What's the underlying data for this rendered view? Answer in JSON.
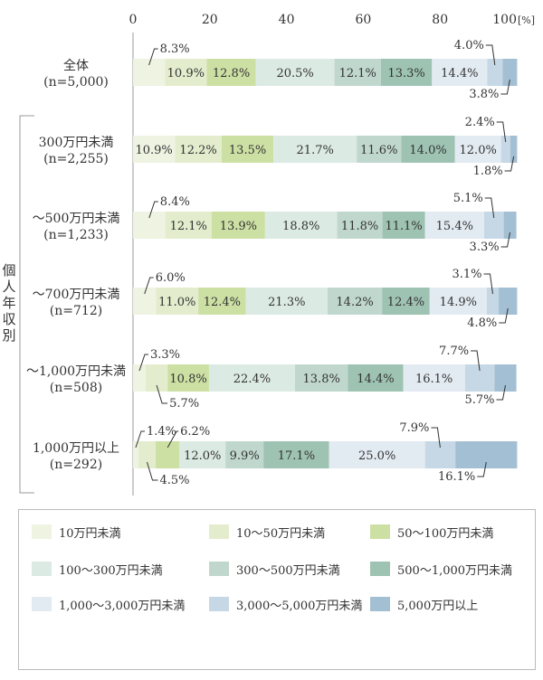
{
  "chart_data": {
    "type": "bar",
    "orientation": "horizontal",
    "stacked": true,
    "x_ticks": [
      "0",
      "20",
      "40",
      "60",
      "80",
      "100"
    ],
    "x_unit": "[%]",
    "xlim": [
      0,
      100
    ],
    "group_label": "個人年収別",
    "categories": [
      {
        "name": "全体",
        "n": "(n=5,000)"
      },
      {
        "name": "300万円未満",
        "n": "(n=2,255)"
      },
      {
        "name": "～500万円未満",
        "n": "(n=1,233)"
      },
      {
        "name": "～700万円未満",
        "n": "(n=712)"
      },
      {
        "name": "～1,000万円未満",
        "n": "(n=508)"
      },
      {
        "name": "1,000万円以上",
        "n": "(n=292)"
      }
    ],
    "series": [
      {
        "name": "10万円未満",
        "color": "#eef3e2",
        "values": [
          8.3,
          10.9,
          8.4,
          6.0,
          3.3,
          1.4
        ],
        "labels": [
          "8.3%",
          "10.9%",
          "8.4%",
          "6.0%",
          "3.3%",
          "1.4%"
        ]
      },
      {
        "name": "10～50万円未満",
        "color": "#e3edcd",
        "values": [
          10.9,
          12.2,
          12.1,
          11.0,
          5.7,
          4.5
        ],
        "labels": [
          "10.9%",
          "12.2%",
          "12.1%",
          "11.0%",
          "5.7%",
          "4.5%"
        ]
      },
      {
        "name": "50～100万円未満",
        "color": "#cde0a4",
        "values": [
          12.8,
          13.5,
          13.9,
          12.4,
          10.8,
          6.2
        ],
        "labels": [
          "12.8%",
          "13.5%",
          "13.9%",
          "12.4%",
          "10.8%",
          "6.2%"
        ]
      },
      {
        "name": "100～300万円未満",
        "color": "#dceae4",
        "values": [
          20.5,
          21.7,
          18.8,
          21.3,
          22.4,
          12.0
        ],
        "labels": [
          "20.5%",
          "21.7%",
          "18.8%",
          "21.3%",
          "22.4%",
          "12.0%"
        ]
      },
      {
        "name": "300～500万円未満",
        "color": "#c0d7ce",
        "values": [
          12.1,
          11.6,
          11.8,
          14.2,
          13.8,
          9.9
        ],
        "labels": [
          "12.1%",
          "11.6%",
          "11.8%",
          "14.2%",
          "13.8%",
          "9.9%"
        ]
      },
      {
        "name": "500～1,000万円未満",
        "color": "#9ec3b3",
        "values": [
          13.3,
          14.0,
          11.1,
          12.4,
          14.4,
          17.1
        ],
        "labels": [
          "13.3%",
          "14.0%",
          "11.1%",
          "12.4%",
          "14.4%",
          "17.1%"
        ]
      },
      {
        "name": "1,000～3,000万円未満",
        "color": "#e3ebf2",
        "values": [
          14.4,
          12.0,
          15.4,
          14.9,
          16.1,
          25.0
        ],
        "labels": [
          "14.4%",
          "12.0%",
          "15.4%",
          "14.9%",
          "16.1%",
          "25.0%"
        ]
      },
      {
        "name": "3,000～5,000万円未満",
        "color": "#c6d8e5",
        "values": [
          4.0,
          2.4,
          5.1,
          3.1,
          7.7,
          7.9
        ],
        "labels": [
          "4.0%",
          "2.4%",
          "5.1%",
          "3.1%",
          "7.7%",
          "7.9%"
        ]
      },
      {
        "name": "5,000万円以上",
        "color": "#a3bfd3",
        "values": [
          3.8,
          1.8,
          3.3,
          4.8,
          5.7,
          16.1
        ],
        "labels": [
          "3.8%",
          "1.8%",
          "3.3%",
          "4.8%",
          "5.7%",
          "16.1%"
        ]
      }
    ]
  }
}
